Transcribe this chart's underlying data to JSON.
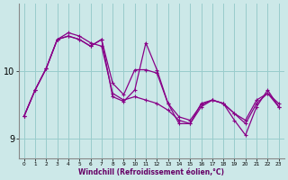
{
  "xlabel": "Windchill (Refroidissement éolien,°C)",
  "background_color": "#cce8e8",
  "line_color": "#880088",
  "grid_color": "#99cccc",
  "x_values": [
    0,
    1,
    2,
    3,
    4,
    5,
    6,
    7,
    8,
    9,
    10,
    11,
    12,
    13,
    14,
    15,
    16,
    17,
    18,
    19,
    20,
    21,
    22,
    23
  ],
  "line1_y": [
    9.33,
    9.72,
    10.04,
    10.47,
    10.52,
    10.47,
    10.37,
    10.47,
    9.82,
    9.65,
    10.02,
    10.02,
    9.97,
    9.52,
    9.32,
    9.27,
    9.5,
    9.57,
    9.52,
    9.37,
    9.27,
    9.57,
    9.67,
    9.52
  ],
  "line2_y": [
    9.33,
    9.72,
    10.04,
    10.47,
    10.52,
    10.47,
    10.37,
    10.47,
    9.62,
    9.55,
    9.72,
    10.42,
    10.02,
    9.52,
    9.22,
    9.22,
    9.47,
    9.57,
    9.52,
    9.37,
    9.22,
    9.52,
    9.67,
    9.47
  ],
  "line3_y": [
    9.33,
    9.72,
    10.04,
    10.47,
    10.57,
    10.52,
    10.42,
    10.37,
    9.67,
    9.57,
    9.62,
    9.57,
    9.52,
    9.42,
    9.27,
    9.22,
    9.52,
    9.57,
    9.52,
    9.27,
    9.05,
    9.47,
    9.72,
    9.47
  ],
  "ylim": [
    8.7,
    11.0
  ],
  "yticks": [
    9,
    10
  ],
  "xlim": [
    -0.5,
    23.5
  ]
}
